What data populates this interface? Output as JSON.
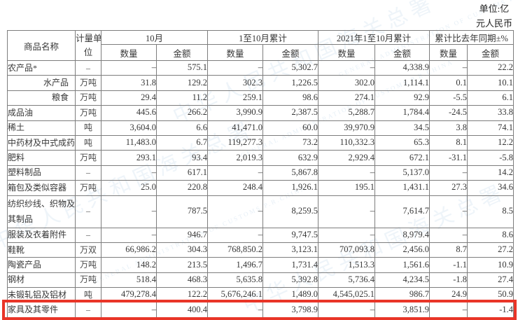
{
  "unit_note": {
    "line1": "单位:亿",
    "line2": "元人民币"
  },
  "watermark": {
    "cjk": "中华人民共和国海关总署",
    "en": "GENERAL ADMINISTRATION OF CUSTOMS P.R.CHINA"
  },
  "table": {
    "headers": {
      "name": "商品名称",
      "unit_line1": "计量单",
      "unit_line2": "位",
      "groups": [
        {
          "label": "10月",
          "sub": [
            "数量",
            "金额"
          ]
        },
        {
          "label": "1至10月累计",
          "sub": [
            "数量",
            "金额"
          ]
        },
        {
          "label": "2021年1至10月累计",
          "sub": [
            "数量",
            "金额"
          ]
        },
        {
          "label": "累计比去年同期±%",
          "sub": [
            "数量",
            "金额"
          ]
        }
      ]
    },
    "rows": [
      {
        "name": "农产品*",
        "unit": "–",
        "sub_item": false,
        "tall": false,
        "highlighted": false,
        "values": [
          "–",
          "575.1",
          "–",
          "5,302.7",
          "–",
          "4,338.9",
          "–",
          "22.2"
        ]
      },
      {
        "name": "水产品",
        "unit": "万吨",
        "sub_item": true,
        "tall": false,
        "highlighted": false,
        "values": [
          "31.8",
          "129.2",
          "302.3",
          "1,226.5",
          "302.0",
          "1,114.1",
          "0.1",
          "10.1"
        ]
      },
      {
        "name": "粮食",
        "unit": "万吨",
        "sub_item": true,
        "tall": false,
        "highlighted": false,
        "values": [
          "29.4",
          "11.2",
          "259.1",
          "98.6",
          "274.1",
          "92.9",
          "-5.5",
          "6.1"
        ]
      },
      {
        "name": "成品油",
        "unit": "万吨",
        "sub_item": false,
        "tall": false,
        "highlighted": false,
        "values": [
          "445.6",
          "266.2",
          "3,990.9",
          "2,387.5",
          "5,288.7",
          "1,784.4",
          "-24.5",
          "33.8"
        ]
      },
      {
        "name": "稀土",
        "unit": "吨",
        "sub_item": false,
        "tall": false,
        "highlighted": false,
        "values": [
          "3,604.0",
          "6.6",
          "41,471.0",
          "60.0",
          "39,970.9",
          "34.5",
          "3.8",
          "74.1"
        ]
      },
      {
        "name": "中药材及中式成药",
        "unit": "吨",
        "sub_item": false,
        "tall": false,
        "highlighted": false,
        "values": [
          "11,483.0",
          "6.7",
          "119,277.3",
          "73.2",
          "110,332.3",
          "65.3",
          "8.1",
          "12.2"
        ]
      },
      {
        "name": "肥料",
        "unit": "万吨",
        "sub_item": false,
        "tall": false,
        "highlighted": false,
        "values": [
          "293.1",
          "93.4",
          "2,019.3",
          "632.9",
          "2,929.4",
          "672.1",
          "-31.1",
          "-5.8"
        ]
      },
      {
        "name": "塑料制品",
        "unit": "–",
        "sub_item": false,
        "tall": false,
        "highlighted": false,
        "values": [
          "–",
          "617.1",
          "–",
          "5,867.8",
          "–",
          "5,137.0",
          "–",
          "14.2"
        ]
      },
      {
        "name": "箱包及类似容器",
        "unit": "万吨",
        "sub_item": false,
        "tall": false,
        "highlighted": false,
        "values": [
          "25.0",
          "220.8",
          "248.4",
          "1,926.1",
          "195.1",
          "1,431.1",
          "27.3",
          "34.6"
        ]
      },
      {
        "name": "纺织纱线、织物及其制品",
        "unit": "–",
        "sub_item": false,
        "tall": true,
        "highlighted": false,
        "values": [
          "–",
          "787.5",
          "–",
          "8,259.5",
          "–",
          "7,614.7",
          "–",
          "8.5"
        ]
      },
      {
        "name": "服装及衣着附件",
        "unit": "–",
        "sub_item": false,
        "tall": false,
        "highlighted": false,
        "values": [
          "–",
          "946.7",
          "–",
          "9,747.5",
          "–",
          "8,979.4",
          "–",
          "8.6"
        ]
      },
      {
        "name": "鞋靴",
        "unit": "万双",
        "sub_item": false,
        "tall": false,
        "highlighted": false,
        "values": [
          "66,986.2",
          "304.3",
          "768,850.2",
          "3,123.1",
          "707,093.8",
          "2,456.0",
          "8.7",
          "27.2"
        ]
      },
      {
        "name": "陶瓷产品",
        "unit": "万吨",
        "sub_item": false,
        "tall": false,
        "highlighted": false,
        "values": [
          "148.2",
          "213.5",
          "1,496.7",
          "1,731.4",
          "1,513.3",
          "1,561.6",
          "-1.1",
          "10.9"
        ]
      },
      {
        "name": "钢材",
        "unit": "万吨",
        "sub_item": false,
        "tall": false,
        "highlighted": false,
        "values": [
          "518.4",
          "468.3",
          "5,635.8",
          "5,392.8",
          "5,736.4",
          "4,234.5",
          "-1.8",
          "27.4"
        ]
      },
      {
        "name": "未锻轧铝及铝材",
        "unit": "吨",
        "sub_item": false,
        "tall": false,
        "highlighted": false,
        "values": [
          "479,278.4",
          "122.2",
          "5,676,246.1",
          "1,489.0",
          "4,545,025.1",
          "986.7",
          "24.9",
          "50.9"
        ]
      },
      {
        "name": "家具及其零件",
        "unit": "–",
        "sub_item": false,
        "tall": false,
        "highlighted": true,
        "values": [
          "–",
          "400.4",
          "–",
          "3,798.9",
          "–",
          "3,851.9",
          "–",
          "-1.4"
        ]
      }
    ]
  }
}
